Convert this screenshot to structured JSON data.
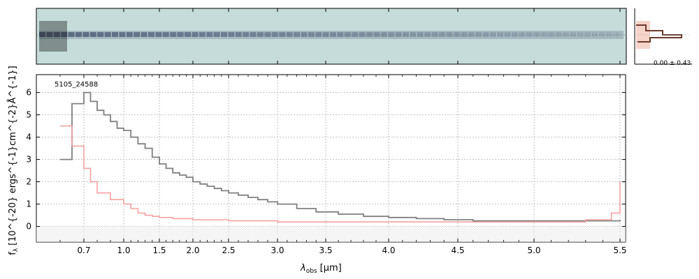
{
  "chart_data": [
    {
      "type": "heatmap",
      "panel": "2d-spectrum",
      "description_colormap": "blue-gray on light teal background",
      "colors": {
        "background": "#c5dcdb",
        "emission": "#1a2850",
        "noise_dark": "#000000"
      }
    },
    {
      "type": "line",
      "panel": "1d-spectrum",
      "label": "5105_24588",
      "xlabel_main": "λ",
      "xlabel_sub": "obs",
      "xlabel_unit": "[μm]",
      "ylabel": "f",
      "ylabel_sub": "λ",
      "ylabel_unit": "[10^{-20} ergs^{-1}cm^{-2}Å^{-1}]",
      "ylim": [
        -0.7,
        6.8
      ],
      "xlim": [
        0.5,
        5.52
      ],
      "x_ticks": [
        0.7,
        1.0,
        1.5,
        2.0,
        2.5,
        3.0,
        3.5,
        4.0,
        4.5,
        5.0,
        5.5
      ],
      "x_tick_labels": [
        "0.7",
        "1.0",
        "1.5",
        "2.0",
        "2.5",
        "3.0",
        "3.5",
        "4.0",
        "4.5",
        "5.0",
        "5.5"
      ],
      "y_ticks": [
        0,
        1,
        2,
        3,
        4,
        5,
        6
      ],
      "y_tick_labels": [
        "0",
        "1",
        "2",
        "3",
        "4",
        "5",
        "6"
      ],
      "grid": true,
      "series": [
        {
          "color": "#808080",
          "x": [
            0.6,
            0.65,
            0.7,
            0.75,
            0.8,
            0.85,
            0.9,
            0.95,
            1.0,
            1.1,
            1.2,
            1.3,
            1.4,
            1.5,
            1.6,
            1.7,
            1.8,
            1.9,
            2.0,
            2.1,
            2.2,
            2.3,
            2.4,
            2.5,
            2.6,
            2.7,
            2.8,
            2.9,
            3.0,
            3.2,
            3.4,
            3.6,
            3.8,
            4.0,
            4.2,
            4.4,
            4.6,
            4.8,
            5.0,
            5.2,
            5.4,
            5.5
          ],
          "y": [
            3.0,
            5.5,
            6.0,
            5.6,
            5.2,
            5.0,
            4.7,
            4.4,
            4.3,
            4.0,
            3.7,
            3.5,
            3.1,
            2.8,
            2.6,
            2.4,
            2.3,
            2.2,
            2.0,
            1.9,
            1.8,
            1.7,
            1.6,
            1.5,
            1.4,
            1.3,
            1.2,
            1.1,
            1.0,
            0.8,
            0.65,
            0.55,
            0.45,
            0.4,
            0.35,
            0.3,
            0.25,
            0.25,
            0.25,
            0.25,
            0.25,
            0.3
          ]
        },
        {
          "color": "#f7a1a1",
          "x": [
            0.6,
            0.65,
            0.7,
            0.75,
            0.8,
            0.9,
            1.0,
            1.1,
            1.2,
            1.3,
            1.4,
            1.5,
            1.7,
            2.0,
            2.5,
            3.0,
            3.5,
            4.0,
            4.5,
            5.0,
            5.3,
            5.45,
            5.5
          ],
          "y": [
            4.5,
            3.6,
            2.6,
            2.0,
            1.5,
            1.2,
            1.0,
            0.8,
            0.6,
            0.5,
            0.45,
            0.4,
            0.35,
            0.3,
            0.25,
            0.2,
            0.2,
            0.2,
            0.2,
            0.2,
            0.3,
            0.6,
            2.0
          ]
        }
      ]
    },
    {
      "type": "bar",
      "panel": "profile-histogram",
      "annotation": "0.00 ± 0.43",
      "colors": {
        "step": "#6b3a2a",
        "fill": "#f5c9bd",
        "bar": "#e8a090"
      }
    }
  ]
}
